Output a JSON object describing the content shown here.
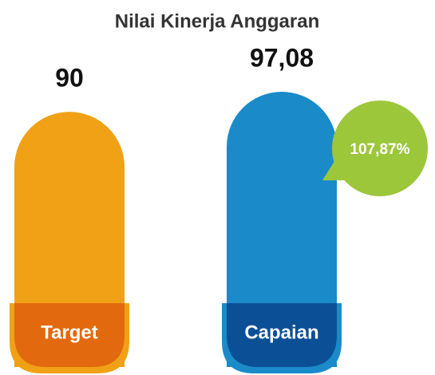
{
  "chart_data": {
    "type": "bar",
    "title": "Nilai Kinerja Anggaran",
    "categories": [
      "Target",
      "Capaian"
    ],
    "values": [
      90,
      97.08
    ],
    "value_labels": [
      "90",
      "97,08"
    ],
    "colors": [
      "#f0a116",
      "#1a8bc8"
    ],
    "base_colors": [
      "#e2690d",
      "#0b4f96"
    ],
    "annotation": "107,87%",
    "annotation_color": "#9dc73b"
  }
}
